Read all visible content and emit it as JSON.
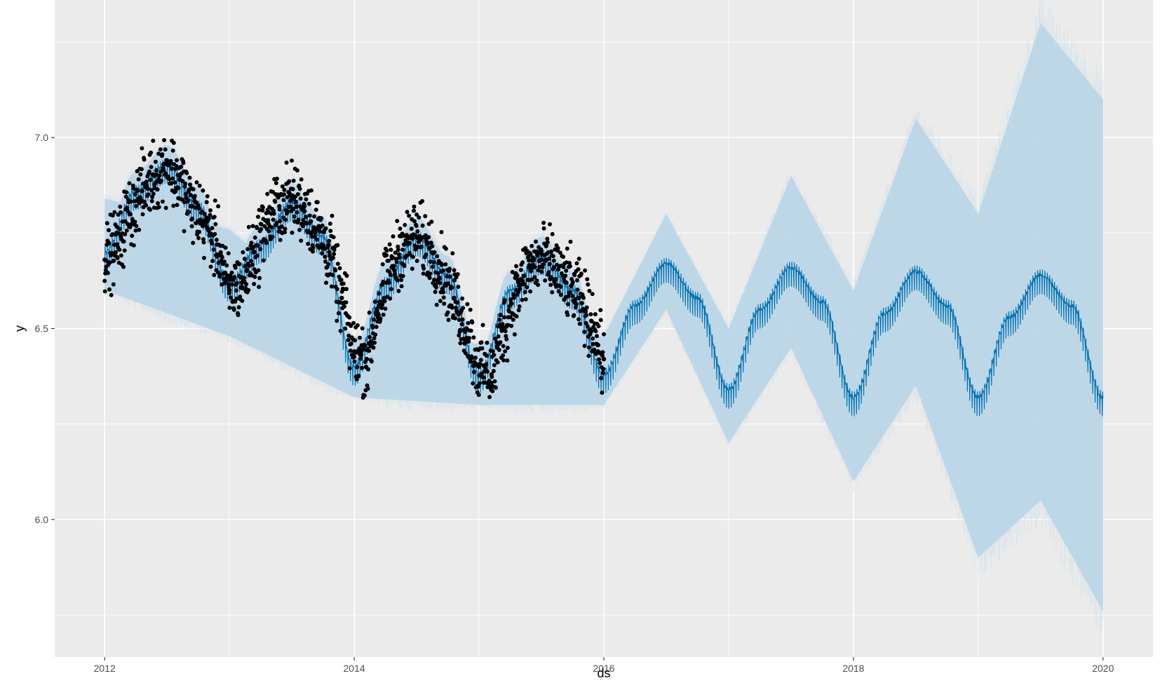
{
  "chart_data": {
    "type": "line",
    "title": "",
    "xlabel": "ds",
    "ylabel": "y",
    "xlim": [
      2011.6,
      2020.4
    ],
    "ylim": [
      5.64,
      7.36
    ],
    "x_ticks": [
      2012,
      2014,
      2016,
      2018,
      2020
    ],
    "x_tick_labels": [
      "2012",
      "2014",
      "2016",
      "2018",
      "2020"
    ],
    "y_ticks": [
      6.0,
      6.5,
      7.0
    ],
    "y_tick_labels": [
      "6.0",
      "6.5",
      "7.0"
    ],
    "grid": true,
    "legend": "none",
    "colors": {
      "panel_background": "#EBEBEB",
      "grid": "#FFFFFF",
      "forecast_line": "#0072B2",
      "uncertainty_band": "#B7D4E6",
      "points": "#000000",
      "axis_text": "#4D4D4D"
    },
    "series": [
      {
        "role": "observed points (scatter, sampled)",
        "x": [
          2012.0,
          2012.1,
          2012.2,
          2012.3,
          2012.4,
          2012.5,
          2012.6,
          2012.7,
          2012.8,
          2012.9,
          2013.0,
          2013.1,
          2013.2,
          2013.3,
          2013.4,
          2013.5,
          2013.6,
          2013.7,
          2013.8,
          2013.9,
          2014.0,
          2014.1,
          2014.2,
          2014.3,
          2014.4,
          2014.5,
          2014.6,
          2014.7,
          2014.8,
          2014.9,
          2015.0,
          2015.1,
          2015.2,
          2015.3,
          2015.4,
          2015.5,
          2015.6,
          2015.7,
          2015.8,
          2015.9,
          2016.0
        ],
        "y": [
          6.68,
          6.72,
          6.8,
          6.86,
          6.9,
          6.93,
          6.89,
          6.82,
          6.78,
          6.72,
          6.6,
          6.62,
          6.7,
          6.78,
          6.82,
          6.84,
          6.82,
          6.76,
          6.7,
          6.58,
          6.44,
          6.42,
          6.56,
          6.66,
          6.72,
          6.74,
          6.71,
          6.65,
          6.58,
          6.5,
          6.4,
          6.38,
          6.5,
          6.6,
          6.66,
          6.68,
          6.66,
          6.62,
          6.58,
          6.52,
          6.42
        ]
      },
      {
        "role": "forecast yhat (line, sampled)",
        "x": [
          2012.0,
          2012.25,
          2012.5,
          2012.75,
          2013.0,
          2013.25,
          2013.5,
          2013.75,
          2014.0,
          2014.25,
          2014.5,
          2014.75,
          2015.0,
          2015.25,
          2015.5,
          2015.75,
          2016.0,
          2016.25,
          2016.5,
          2016.75,
          2017.0,
          2017.25,
          2017.5,
          2017.75,
          2018.0,
          2018.25,
          2018.5,
          2018.75,
          2019.0,
          2019.25,
          2019.5,
          2019.75,
          2020.0
        ],
        "y": [
          6.7,
          6.86,
          6.93,
          6.82,
          6.62,
          6.72,
          6.83,
          6.74,
          6.4,
          6.62,
          6.74,
          6.64,
          6.38,
          6.6,
          6.69,
          6.6,
          6.38,
          6.56,
          6.67,
          6.58,
          6.34,
          6.55,
          6.66,
          6.57,
          6.32,
          6.54,
          6.65,
          6.56,
          6.32,
          6.53,
          6.64,
          6.56,
          6.32
        ]
      },
      {
        "role": "uncertainty interval (area, sampled)",
        "x": [
          2012.0,
          2013.0,
          2014.0,
          2015.0,
          2016.0,
          2016.5,
          2017.0,
          2017.5,
          2018.0,
          2018.5,
          2019.0,
          2019.5,
          2020.0
        ],
        "lower": [
          6.6,
          6.48,
          6.32,
          6.3,
          6.3,
          6.55,
          6.2,
          6.45,
          6.1,
          6.35,
          5.9,
          6.05,
          5.76
        ],
        "upper": [
          6.84,
          6.76,
          6.48,
          6.46,
          6.48,
          6.8,
          6.5,
          6.9,
          6.6,
          7.05,
          6.8,
          7.3,
          7.1
        ]
      }
    ]
  }
}
